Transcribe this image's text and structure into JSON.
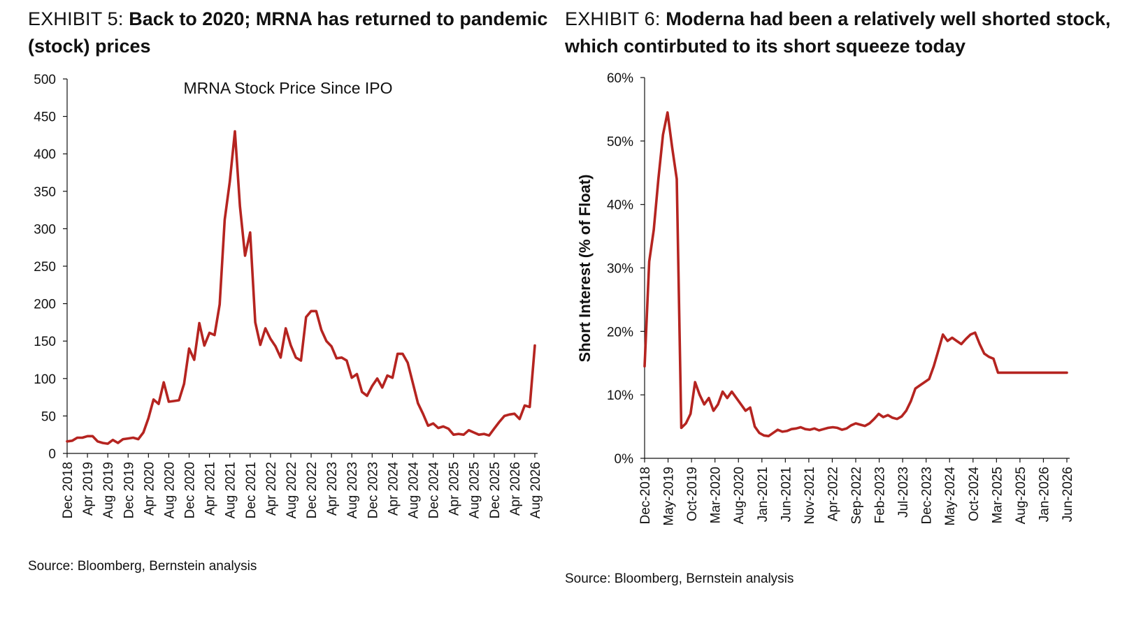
{
  "exhibits": [
    {
      "label": "EXHIBIT 5: ",
      "title": "Back to 2020; MRNA has returned to pandemic (stock) prices",
      "source": "Source: Bloomberg, Bernstein analysis"
    },
    {
      "label": "EXHIBIT 6: ",
      "title": "Moderna had been a relatively well shorted stock, which contirbuted to its short squeeze today",
      "source": "Source: Bloomberg, Bernstein analysis"
    }
  ],
  "chart_data": [
    {
      "type": "line",
      "title": "MRNA Stock Price Since IPO",
      "xlabel": "",
      "ylabel": "",
      "ylim": [
        0,
        500
      ],
      "yticks": [
        "0",
        "50",
        "100",
        "150",
        "200",
        "250",
        "300",
        "350",
        "400",
        "450",
        "500"
      ],
      "x_ticks": [
        "Dec 2018",
        "Apr 2019",
        "Aug 2019",
        "Dec 2019",
        "Apr 2020",
        "Aug 2020",
        "Dec 2020",
        "Apr 2021",
        "Aug 2021",
        "Dec 2021",
        "Apr 2022",
        "Aug 2022",
        "Dec 2022",
        "Apr 2023",
        "Aug 2023",
        "Dec 2023",
        "Apr 2024",
        "Aug 2024",
        "Dec 2024",
        "Apr 2025",
        "Aug 2025",
        "Dec 2025",
        "Apr 2026",
        "Aug 2026"
      ],
      "x_range": [
        "2018-12",
        "2026-08"
      ],
      "grid": false,
      "color": "#b52420",
      "series": [
        {
          "x": [
            "2018-12",
            "2019-01",
            "2019-02",
            "2019-03",
            "2019-04",
            "2019-05",
            "2019-06",
            "2019-07",
            "2019-08",
            "2019-09",
            "2019-10",
            "2019-11",
            "2019-12",
            "2020-01",
            "2020-02",
            "2020-03",
            "2020-04",
            "2020-05",
            "2020-06",
            "2020-07",
            "2020-08",
            "2020-09",
            "2020-10",
            "2020-11",
            "2020-12",
            "2021-01",
            "2021-02",
            "2021-03",
            "2021-04",
            "2021-05",
            "2021-06",
            "2021-07",
            "2021-08",
            "2021-09",
            "2021-10",
            "2021-11",
            "2021-12",
            "2022-01",
            "2022-02",
            "2022-03",
            "2022-04",
            "2022-05",
            "2022-06",
            "2022-07",
            "2022-08",
            "2022-09",
            "2022-10",
            "2022-11",
            "2022-12",
            "2023-01",
            "2023-02",
            "2023-03",
            "2023-04",
            "2023-05",
            "2023-06",
            "2023-07",
            "2023-08",
            "2023-09",
            "2023-10",
            "2023-11",
            "2023-12",
            "2024-01",
            "2024-02",
            "2024-03",
            "2024-04",
            "2024-05",
            "2024-06",
            "2024-07",
            "2024-08",
            "2024-09",
            "2024-10",
            "2024-11",
            "2024-12",
            "2025-01",
            "2025-02",
            "2025-03",
            "2025-04",
            "2025-05",
            "2025-06",
            "2025-07",
            "2025-08",
            "2025-09",
            "2025-10",
            "2025-11",
            "2025-12",
            "2026-01",
            "2026-02",
            "2026-03",
            "2026-04",
            "2026-05",
            "2026-06",
            "2026-07",
            "2026-08"
          ],
          "values": [
            16,
            17,
            21,
            21,
            23,
            23,
            16,
            14,
            13,
            18,
            14,
            19,
            20,
            21,
            19,
            28,
            47,
            72,
            66,
            95,
            69,
            70,
            71,
            93,
            140,
            125,
            174,
            144,
            161,
            158,
            199,
            312,
            363,
            430,
            330,
            264,
            295,
            175,
            145,
            167,
            153,
            143,
            128,
            167,
            144,
            128,
            124,
            182,
            190,
            190,
            165,
            150,
            143,
            127,
            128,
            124,
            101,
            106,
            82,
            77,
            90,
            100,
            88,
            104,
            101,
            133,
            133,
            121,
            94,
            67,
            53,
            37,
            40,
            34,
            36,
            33,
            25,
            26,
            25,
            31,
            28,
            25,
            26,
            24,
            33,
            42,
            50,
            52,
            53,
            46,
            64,
            62,
            144
          ]
        }
      ]
    },
    {
      "type": "line",
      "title": "",
      "xlabel": "",
      "ylabel": "Short Interest (% of Float)",
      "ylim": [
        0,
        60
      ],
      "yticks": [
        "0%",
        "10%",
        "20%",
        "30%",
        "40%",
        "50%",
        "60%"
      ],
      "x_ticks": [
        "Dec-2018",
        "May-2019",
        "Oct-2019",
        "Mar-2020",
        "Aug-2020",
        "Jan-2021",
        "Jun-2021",
        "Nov-2021",
        "Apr-2022",
        "Sep-2022",
        "Feb-2023",
        "Jul-2023",
        "Dec-2023",
        "May-2024",
        "Oct-2024",
        "Mar-2025",
        "Aug-2025",
        "Jan-2026",
        "Jun-2026"
      ],
      "x_range": [
        "2018-12",
        "2026-08"
      ],
      "grid": false,
      "color": "#b52420",
      "series": [
        {
          "x": [
            "2018-12",
            "2019-01",
            "2019-02",
            "2019-03",
            "2019-04",
            "2019-05",
            "2019-06",
            "2019-07",
            "2019-08",
            "2019-09",
            "2019-10",
            "2019-11",
            "2019-12",
            "2020-01",
            "2020-02",
            "2020-03",
            "2020-04",
            "2020-05",
            "2020-06",
            "2020-07",
            "2020-08",
            "2020-09",
            "2020-10",
            "2020-11",
            "2020-12",
            "2021-01",
            "2021-02",
            "2021-03",
            "2021-04",
            "2021-05",
            "2021-06",
            "2021-07",
            "2021-08",
            "2021-09",
            "2021-10",
            "2021-11",
            "2021-12",
            "2022-01",
            "2022-02",
            "2022-03",
            "2022-04",
            "2022-05",
            "2022-06",
            "2022-07",
            "2022-08",
            "2022-09",
            "2022-10",
            "2022-11",
            "2022-12",
            "2023-01",
            "2023-02",
            "2023-03",
            "2023-04",
            "2023-05",
            "2023-06",
            "2023-07",
            "2023-08",
            "2023-09",
            "2023-10",
            "2023-11",
            "2023-12",
            "2024-01",
            "2024-02",
            "2024-03",
            "2024-04",
            "2024-05",
            "2024-06",
            "2024-07",
            "2024-08",
            "2024-09",
            "2024-10",
            "2024-11",
            "2024-12",
            "2025-01",
            "2025-02",
            "2025-03",
            "2025-04",
            "2025-05",
            "2025-06",
            "2025-07",
            "2025-08",
            "2025-09",
            "2025-10",
            "2025-11",
            "2025-12",
            "2026-01",
            "2026-02",
            "2026-03",
            "2026-04",
            "2026-05",
            "2026-06",
            "2026-07",
            "2026-08"
          ],
          "values": [
            14.5,
            31,
            36,
            44,
            51,
            54.5,
            49,
            44,
            4.8,
            5.5,
            7,
            12,
            10,
            8.5,
            9.5,
            7.5,
            8.5,
            10.5,
            9.5,
            10.5,
            9.5,
            8.5,
            7.5,
            8,
            5,
            4,
            3.6,
            3.5,
            4,
            4.5,
            4.2,
            4.3,
            4.6,
            4.7,
            4.9,
            4.6,
            4.5,
            4.7,
            4.4,
            4.6,
            4.8,
            4.9,
            4.8,
            4.5,
            4.7,
            5.2,
            5.5,
            5.3,
            5.1,
            5.5,
            6.2,
            7,
            6.5,
            6.8,
            6.4,
            6.2,
            6.6,
            7.5,
            9,
            11,
            11.5,
            12,
            12.5,
            14.5,
            17,
            19.5,
            18.5,
            19,
            18.5,
            18,
            18.8,
            19.5,
            19.8,
            18,
            16.5,
            16,
            15.7,
            13.5,
            13.5,
            13.5,
            13.5,
            13.5,
            13.5,
            13.5,
            13.5,
            13.5,
            13.5,
            13.5,
            13.5,
            13.5,
            13.5,
            13.5,
            13.5
          ]
        }
      ]
    }
  ]
}
